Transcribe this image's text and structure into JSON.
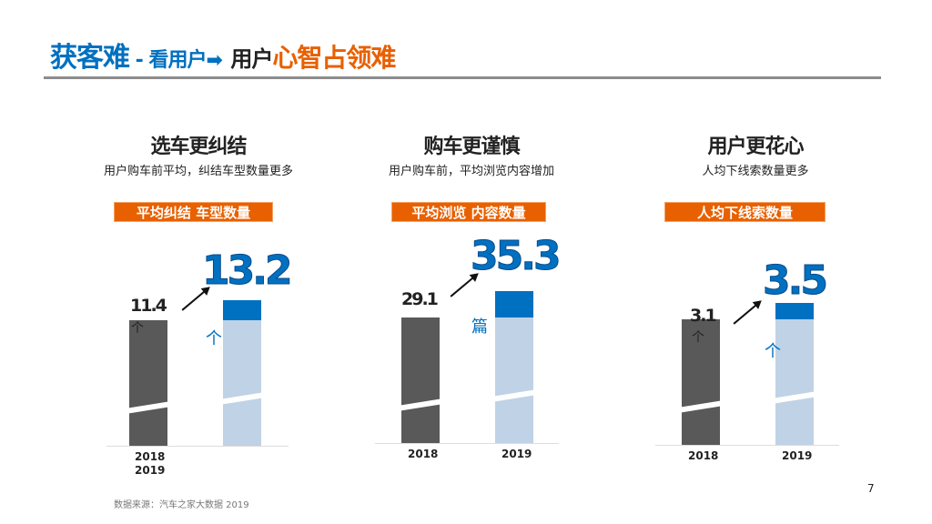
{
  "title": {
    "part1": "获客难",
    "sep": " - ",
    "part2": "看用户",
    "arrow": "➡",
    "part3": "用户",
    "part4": "心智占领难"
  },
  "footer": {
    "source": "数据来源：汽车之家大数据 2019",
    "page": "7"
  },
  "colors": {
    "accent_blue": "#0070c0",
    "accent_orange": "#e86000",
    "bar_2018": "#595959",
    "bar_2019": "#bfd2e6"
  },
  "panels": [
    {
      "heading": "选车更纠结",
      "subtitle": "用户购车前平均，纠结车型数量更多",
      "tag": "平均纠结 车型数量",
      "unit": "个"
    },
    {
      "heading": "购车更谨慎",
      "subtitle": "用户购车前，平均浏览内容增加",
      "tag": "平均浏览 内容数量",
      "unit": "篇"
    },
    {
      "heading": "用户更花心",
      "subtitle": "人均下线索数量更多",
      "tag": "人均下线索数量",
      "unit": "个"
    }
  ],
  "chart_data": [
    {
      "type": "bar",
      "categories": [
        "2018",
        "2019"
      ],
      "values": [
        11.4,
        13.2
      ],
      "value_labels": [
        "11.4",
        "13.2"
      ],
      "unit": "个",
      "axis_break": true
    },
    {
      "type": "bar",
      "categories": [
        "2018",
        "2019"
      ],
      "values": [
        29.1,
        35.3
      ],
      "value_labels": [
        "29.1",
        "35.3"
      ],
      "unit": "篇",
      "axis_break": true
    },
    {
      "type": "bar",
      "categories": [
        "2018",
        "2019"
      ],
      "values": [
        3.1,
        3.5
      ],
      "value_labels": [
        "3.1",
        "3.5"
      ],
      "unit": "个",
      "axis_break": true
    }
  ]
}
